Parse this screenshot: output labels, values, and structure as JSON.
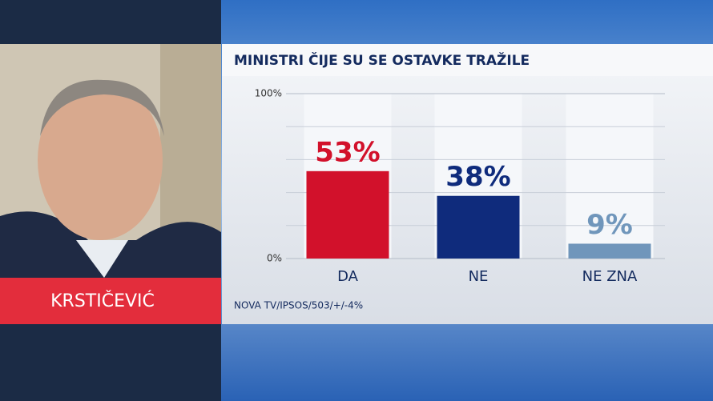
{
  "chart_data": {
    "type": "bar",
    "title": "MINISTRI ČIJE SU SE OSTAVKE TRAŽILE",
    "name_label": "KRSTIČEVIĆ",
    "source": "NOVA TV/IPSOS/503/+/-4%",
    "categories": [
      "DA",
      "NE",
      "NE ZNA"
    ],
    "values": [
      53,
      38,
      9
    ],
    "value_labels": [
      "53%",
      "38%",
      "9%"
    ],
    "colors": [
      "#d2112b",
      "#0f2b7c",
      "#7096bb"
    ],
    "ylim": [
      0,
      100
    ],
    "yticks": [
      {
        "value": 0,
        "label": "0%"
      },
      {
        "value": 100,
        "label": "100%"
      }
    ],
    "minor_gridlines": [
      20,
      40,
      60,
      80
    ],
    "grid": true
  }
}
